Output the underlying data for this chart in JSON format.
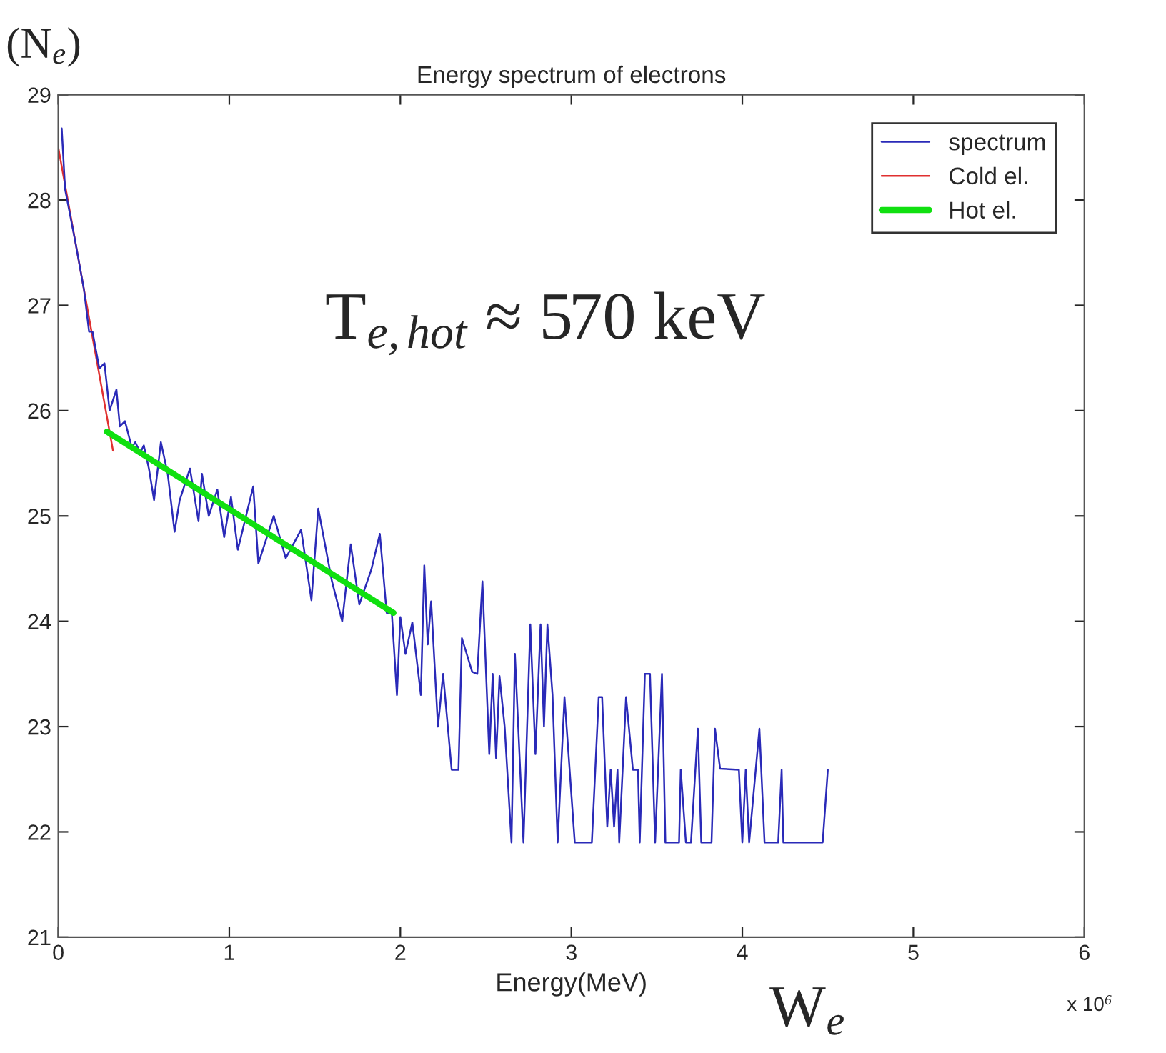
{
  "chart_data": {
    "type": "line",
    "title": "Energy spectrum of electrons",
    "xlabel": "Energy(MeV)",
    "xlim": [
      0,
      6
    ],
    "ylim": [
      21,
      29
    ],
    "xticks": [
      0,
      1,
      2,
      3,
      4,
      5,
      6
    ],
    "yticks": [
      21,
      22,
      23,
      24,
      25,
      26,
      27,
      28,
      29
    ],
    "grid": false,
    "legend": "top right",
    "annotations": [
      "T$_{e,hot}$ ≈ 570 keV",
      "W$_{e}$",
      "(N$_{e}$)",
      "x 10$^{6}$"
    ],
    "series": [
      {
        "name": "spectrum",
        "color": "#2a2ab8",
        "x": [
          0.02,
          0.04,
          0.1,
          0.15,
          0.18,
          0.2,
          0.24,
          0.27,
          0.3,
          0.34,
          0.36,
          0.39,
          0.43,
          0.45,
          0.48,
          0.5,
          0.53,
          0.56,
          0.6,
          0.64,
          0.68,
          0.71,
          0.77,
          0.82,
          0.84,
          0.88,
          0.93,
          0.97,
          1.01,
          1.05,
          1.14,
          1.17,
          1.26,
          1.33,
          1.42,
          1.48,
          1.52,
          1.6,
          1.66,
          1.71,
          1.76,
          1.83,
          1.88,
          1.92,
          1.95,
          1.98,
          2.0,
          2.03,
          2.07,
          2.12,
          2.14,
          2.16,
          2.18,
          2.22,
          2.25,
          2.3,
          2.34,
          2.36,
          2.42,
          2.45,
          2.48,
          2.52,
          2.54,
          2.56,
          2.58,
          2.61,
          2.65,
          2.67,
          2.72,
          2.76,
          2.79,
          2.82,
          2.84,
          2.86,
          2.89,
          2.92,
          2.96,
          3.02,
          3.12,
          3.16,
          3.18,
          3.21,
          3.23,
          3.25,
          3.27,
          3.28,
          3.32,
          3.36,
          3.39,
          3.4,
          3.43,
          3.46,
          3.49,
          3.53,
          3.55,
          3.63,
          3.64,
          3.67,
          3.7,
          3.74,
          3.76,
          3.82,
          3.84,
          3.87,
          3.98,
          4.0,
          4.02,
          4.04,
          4.1,
          4.13,
          4.21,
          4.23,
          4.24,
          4.47,
          4.5
        ],
        "values": [
          28.68,
          28.1,
          27.6,
          27.15,
          26.75,
          26.75,
          26.4,
          26.45,
          26.0,
          26.2,
          25.85,
          25.9,
          25.65,
          25.7,
          25.6,
          25.67,
          25.45,
          25.15,
          25.7,
          25.4,
          24.85,
          25.15,
          25.45,
          24.95,
          25.4,
          25.0,
          25.25,
          24.8,
          25.18,
          24.68,
          25.28,
          24.55,
          25.0,
          24.6,
          24.87,
          24.2,
          25.07,
          24.38,
          24.0,
          24.73,
          24.16,
          24.49,
          24.83,
          24.08,
          24.08,
          23.3,
          24.04,
          23.69,
          23.99,
          23.3,
          24.53,
          23.78,
          24.19,
          23.0,
          23.5,
          22.59,
          22.59,
          23.84,
          23.52,
          23.5,
          24.38,
          22.74,
          23.5,
          22.7,
          23.48,
          23.0,
          21.9,
          23.69,
          21.9,
          23.97,
          22.74,
          23.97,
          23.0,
          23.97,
          23.3,
          21.9,
          23.28,
          21.9,
          21.9,
          23.28,
          23.28,
          22.05,
          22.59,
          22.05,
          22.59,
          21.9,
          23.28,
          22.59,
          22.59,
          21.9,
          23.5,
          23.5,
          21.9,
          23.5,
          21.9,
          21.9,
          22.59,
          21.9,
          21.9,
          22.98,
          21.9,
          21.9,
          22.98,
          22.6,
          22.59,
          21.9,
          22.59,
          21.9,
          22.98,
          21.9,
          21.9,
          22.59,
          21.9,
          21.9,
          22.59
        ]
      },
      {
        "name": "Cold el.",
        "color": "#e03030",
        "x": [
          0.0,
          0.32
        ],
        "values": [
          28.5,
          25.62
        ]
      },
      {
        "name": "Hot el.",
        "color": "#10e010",
        "x": [
          0.284,
          1.96
        ],
        "values": [
          25.8,
          24.08
        ]
      }
    ]
  }
}
